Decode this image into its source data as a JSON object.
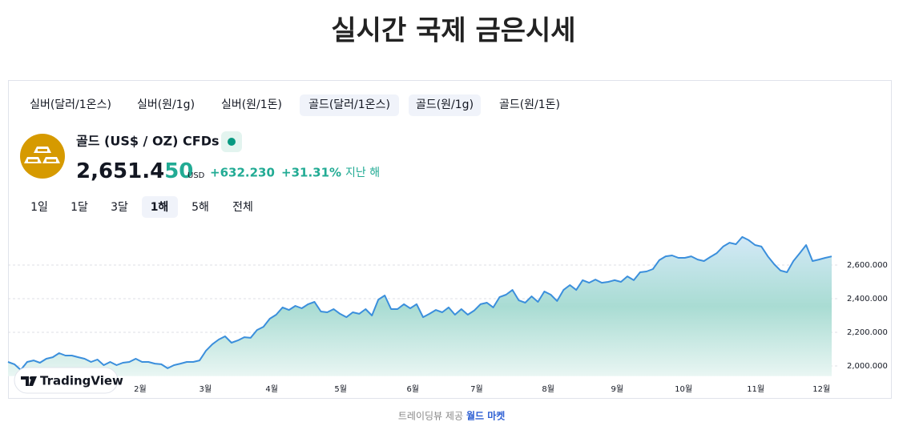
{
  "header": {
    "title": "실시간 국제 금은시세"
  },
  "tabs": [
    {
      "label": "실버(달러/1온스)",
      "active": false
    },
    {
      "label": "실버(원/1g)",
      "active": false
    },
    {
      "label": "실버(원/1돈)",
      "active": false
    },
    {
      "label": "골드(달러/1온스)",
      "active": true
    },
    {
      "label": "골드(원/1g)",
      "active": true
    },
    {
      "label": "골드(원/1돈)",
      "active": false
    }
  ],
  "symbol": {
    "name": "골드 (US$ / OZ) CFDs",
    "price_main": "2,651.4",
    "price_tail": "50",
    "currency": "USD",
    "change": "+632.230",
    "change_pct": "+31.31%",
    "period": "지난 해"
  },
  "ranges": [
    {
      "label": "1일",
      "active": false
    },
    {
      "label": "1달",
      "active": false
    },
    {
      "label": "3달",
      "active": false
    },
    {
      "label": "1해",
      "active": true
    },
    {
      "label": "5해",
      "active": false
    },
    {
      "label": "전체",
      "active": false
    }
  ],
  "chart_data": {
    "type": "line",
    "color": "#3b8fdc",
    "grid": true,
    "values": [
      2024,
      2010,
      1976,
      2024,
      2033,
      2019,
      2043,
      2052,
      2076,
      2062,
      2062,
      2052,
      2043,
      2024,
      2038,
      2005,
      2024,
      2005,
      2019,
      2024,
      2043,
      2024,
      2024,
      2014,
      2010,
      1986,
      2005,
      2014,
      2024,
      2024,
      2033,
      2090,
      2129,
      2157,
      2176,
      2138,
      2152,
      2171,
      2167,
      2214,
      2233,
      2281,
      2305,
      2348,
      2333,
      2357,
      2343,
      2367,
      2381,
      2324,
      2319,
      2338,
      2310,
      2290,
      2319,
      2310,
      2338,
      2300,
      2395,
      2419,
      2338,
      2338,
      2367,
      2343,
      2367,
      2290,
      2310,
      2333,
      2319,
      2348,
      2305,
      2338,
      2305,
      2329,
      2367,
      2376,
      2348,
      2410,
      2424,
      2452,
      2390,
      2376,
      2414,
      2381,
      2443,
      2424,
      2386,
      2452,
      2481,
      2452,
      2510,
      2495,
      2514,
      2495,
      2500,
      2510,
      2500,
      2533,
      2510,
      2557,
      2562,
      2576,
      2629,
      2652,
      2657,
      2643,
      2643,
      2652,
      2633,
      2624,
      2648,
      2671,
      2710,
      2733,
      2724,
      2767,
      2748,
      2719,
      2710,
      2652,
      2605,
      2567,
      2557,
      2624,
      2671,
      2719,
      2624,
      2633,
      2643,
      2651.45
    ],
    "xlim": [
      0,
      129
    ],
    "xticks": [
      {
        "value": 20.7,
        "label": "2월"
      },
      {
        "value": 30.9,
        "label": "3월"
      },
      {
        "value": 41.3,
        "label": "4월"
      },
      {
        "value": 52.1,
        "label": "5월"
      },
      {
        "value": 63.4,
        "label": "6월"
      },
      {
        "value": 73.4,
        "label": "7월"
      },
      {
        "value": 84.6,
        "label": "8월"
      },
      {
        "value": 95.4,
        "label": "9월"
      },
      {
        "value": 105.8,
        "label": "10월"
      },
      {
        "value": 117.1,
        "label": "11월"
      },
      {
        "value": 127.4,
        "label": "12월"
      }
    ],
    "ylim": [
      1940,
      2820
    ],
    "yticks": [
      {
        "value": 2000,
        "label": "2,000.000"
      },
      {
        "value": 2200,
        "label": "2,200.000"
      },
      {
        "value": 2400,
        "label": "2,400.000"
      },
      {
        "value": 2600,
        "label": "2,600.000"
      }
    ]
  },
  "badge": {
    "label": "TradingView"
  },
  "footer": {
    "credit": "트레이딩뷰 제공",
    "link": "월드 마켓"
  }
}
